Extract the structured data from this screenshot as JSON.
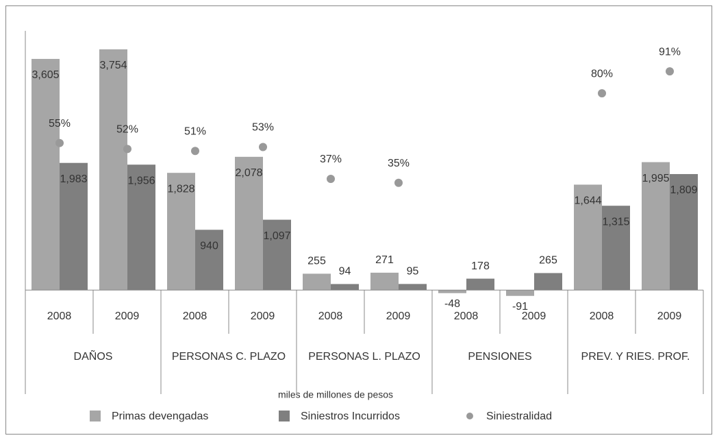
{
  "chart_data": {
    "type": "bar",
    "x_label": "miles de  millones de pesos",
    "categories": [
      "2008",
      "2009",
      "2008",
      "2009",
      "2008",
      "2009",
      "2008",
      "2009",
      "2008",
      "2009"
    ],
    "groups": [
      "DAÑOS",
      "PERSONAS C. PLAZO",
      "PERSONAS L. PLAZO",
      "PENSIONES",
      "PREV. Y RIES. PROF."
    ],
    "ylim": [
      -500,
      4000
    ],
    "y2lim": [
      -35,
      110
    ],
    "series": [
      {
        "name": "Primas devengadas",
        "color": "#a6a6a6",
        "values": [
          3605,
          3754,
          1828,
          2078,
          255,
          271,
          -48,
          -91,
          1644,
          1995
        ],
        "value_labels": [
          "3,605",
          "3,754",
          "1,828",
          "2,078",
          "255",
          "271",
          "-48",
          "-91",
          "1,644",
          "1,995"
        ]
      },
      {
        "name": "Siniestros Incurridos",
        "color": "#7f7f7f",
        "values": [
          1983,
          1956,
          940,
          1097,
          94,
          95,
          178,
          265,
          1315,
          1809
        ],
        "value_labels": [
          "1,983",
          "1,956",
          "940",
          "1,097",
          "94",
          "95",
          "178",
          "265",
          "1,315",
          "1,809"
        ]
      },
      {
        "name": "Siniestralidad",
        "color": "#999999",
        "type": "scatter",
        "axis": "y2",
        "values": [
          55,
          52,
          51,
          53,
          37,
          35,
          null,
          null,
          80,
          91
        ],
        "value_labels": [
          "55%",
          "52%",
          "51%",
          "53%",
          "37%",
          "35%",
          null,
          null,
          "80%",
          "91%"
        ]
      }
    ]
  }
}
